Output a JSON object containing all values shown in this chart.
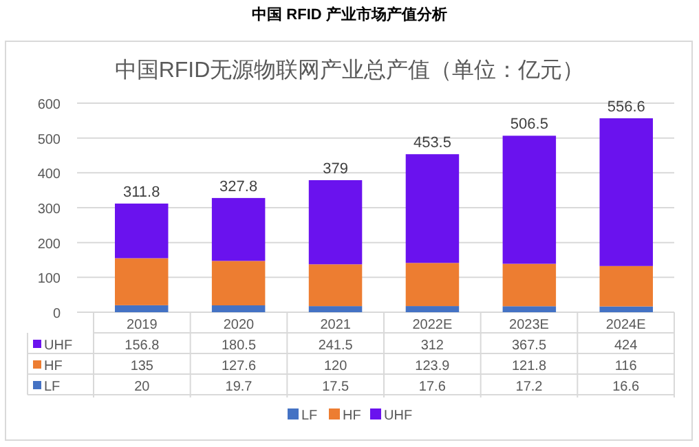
{
  "chart_data": {
    "type": "bar",
    "title": "中国 RFID 产业市场产值分析",
    "subtitle": "中国RFID无源物联网产业总产值（单位：亿元）",
    "categories": [
      "2019",
      "2020",
      "2021",
      "2022E",
      "2023E",
      "2024E"
    ],
    "stacked": true,
    "series": [
      {
        "name": "LF",
        "color": "#4472c4",
        "values": [
          20,
          19.7,
          17.5,
          17.6,
          17.2,
          16.6
        ]
      },
      {
        "name": "HF",
        "color": "#ed7d31",
        "values": [
          135,
          127.6,
          120,
          123.9,
          121.8,
          116
        ]
      },
      {
        "name": "UHF",
        "color": "#6a12ee",
        "values": [
          156.8,
          180.5,
          241.5,
          312,
          367.5,
          424
        ]
      }
    ],
    "totals": [
      "311.8",
      "327.8",
      "379",
      "453.5",
      "506.5",
      "556.6"
    ],
    "ylim": [
      0,
      600
    ],
    "yticks": [
      0,
      100,
      200,
      300,
      400,
      500,
      600
    ],
    "grid": "y",
    "legend": "bottom",
    "data_labels": true
  }
}
